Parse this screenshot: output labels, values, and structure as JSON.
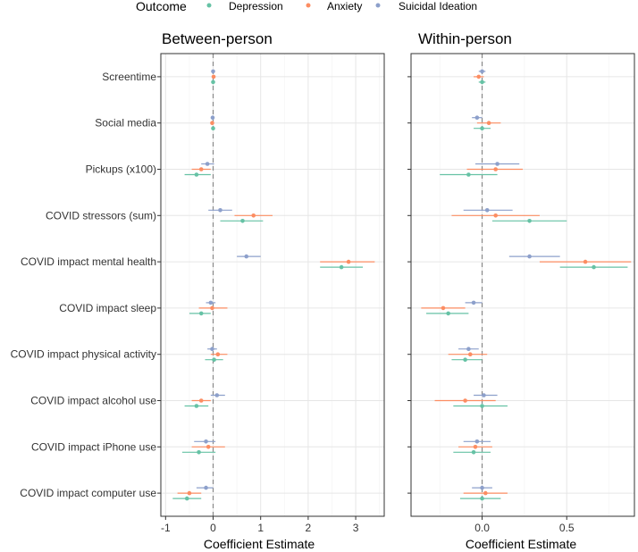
{
  "legend": {
    "title": "Outcome",
    "items": [
      {
        "label": "Depression",
        "color": "#66c2a5"
      },
      {
        "label": "Anxiety",
        "color": "#fc8d62"
      },
      {
        "label": "Suicidal Ideation",
        "color": "#8da0cb"
      }
    ]
  },
  "chart_data": [
    {
      "type": "scatter",
      "subtype": "coefficient-forest-plot",
      "title": "Between-person",
      "xlabel": "Coefficient Estimate",
      "ylabel": "",
      "xlim": [
        -1.1,
        3.6
      ],
      "xticks": [
        -1,
        0,
        1,
        2,
        3
      ],
      "reference_line": 0,
      "grid": true,
      "legend_position": "top",
      "categories": [
        "Screentime",
        "Social media",
        "Pickups (x100)",
        "COVID stressors (sum)",
        "COVID impact mental health",
        "COVID impact sleep",
        "COVID impact physical activity",
        "COVID impact alcohol use",
        "COVID impact iPhone use",
        "COVID impact computer use"
      ],
      "series": [
        {
          "name": "Depression",
          "color": "#66c2a5",
          "estimate": [
            0.0,
            0.0,
            -0.35,
            0.62,
            2.7,
            -0.25,
            0.02,
            -0.35,
            -0.3,
            -0.55
          ],
          "lower": [
            -0.02,
            -0.02,
            -0.6,
            0.15,
            2.25,
            -0.5,
            -0.17,
            -0.6,
            -0.65,
            -0.85
          ],
          "upper": [
            0.02,
            0.02,
            -0.05,
            1.05,
            3.15,
            -0.05,
            0.21,
            -0.1,
            0.05,
            -0.25
          ]
        },
        {
          "name": "Anxiety",
          "color": "#fc8d62",
          "estimate": [
            0.01,
            -0.02,
            -0.25,
            0.85,
            2.85,
            -0.02,
            0.1,
            -0.25,
            -0.1,
            -0.5
          ],
          "lower": [
            -0.01,
            -0.04,
            -0.45,
            0.45,
            2.25,
            -0.3,
            -0.05,
            -0.45,
            -0.45,
            -0.75
          ],
          "upper": [
            0.03,
            0.0,
            -0.05,
            1.25,
            3.4,
            0.3,
            0.3,
            -0.05,
            0.25,
            -0.25
          ]
        },
        {
          "name": "Suicidal Ideation",
          "color": "#8da0cb",
          "estimate": [
            0.0,
            -0.01,
            -0.12,
            0.15,
            0.7,
            -0.05,
            -0.02,
            0.08,
            -0.15,
            -0.15
          ],
          "lower": [
            -0.02,
            -0.03,
            -0.25,
            -0.1,
            0.5,
            -0.15,
            -0.12,
            -0.05,
            -0.4,
            -0.35
          ],
          "upper": [
            0.02,
            0.01,
            0.02,
            0.4,
            1.0,
            0.05,
            0.08,
            0.25,
            0.05,
            0.0
          ]
        }
      ]
    },
    {
      "type": "scatter",
      "subtype": "coefficient-forest-plot",
      "title": "Within-person",
      "xlabel": "Coefficient Estimate",
      "ylabel": "",
      "xlim": [
        -0.42,
        0.9
      ],
      "xticks": [
        0.0,
        0.5
      ],
      "reference_line": 0,
      "grid": true,
      "legend_position": "top",
      "categories": [
        "Screentime",
        "Social media",
        "Pickups (x100)",
        "COVID stressors (sum)",
        "COVID impact mental health",
        "COVID impact sleep",
        "COVID impact physical activity",
        "COVID impact alcohol use",
        "COVID impact iPhone use",
        "COVID impact computer use"
      ],
      "series": [
        {
          "name": "Depression",
          "color": "#66c2a5",
          "estimate": [
            0.0,
            0.0,
            -0.08,
            0.28,
            0.66,
            -0.2,
            -0.1,
            0.0,
            -0.05,
            0.0
          ],
          "lower": [
            -0.02,
            -0.05,
            -0.25,
            0.06,
            0.46,
            -0.33,
            -0.18,
            -0.17,
            -0.17,
            -0.13
          ],
          "upper": [
            0.02,
            0.05,
            0.09,
            0.5,
            0.86,
            -0.08,
            0.0,
            0.15,
            0.05,
            0.11
          ]
        },
        {
          "name": "Anxiety",
          "color": "#fc8d62",
          "estimate": [
            -0.02,
            0.04,
            0.08,
            0.08,
            0.61,
            -0.23,
            -0.07,
            -0.1,
            -0.04,
            0.02
          ],
          "lower": [
            -0.05,
            -0.03,
            -0.09,
            -0.18,
            0.34,
            -0.36,
            -0.2,
            -0.28,
            -0.14,
            -0.11
          ],
          "upper": [
            0.01,
            0.11,
            0.24,
            0.34,
            0.88,
            -0.1,
            0.03,
            0.08,
            0.06,
            0.15
          ]
        },
        {
          "name": "Suicidal Ideation",
          "color": "#8da0cb",
          "estimate": [
            0.0,
            -0.03,
            0.09,
            0.03,
            0.28,
            -0.05,
            -0.08,
            0.01,
            -0.03,
            0.0
          ],
          "lower": [
            -0.02,
            -0.06,
            -0.04,
            -0.11,
            0.16,
            -0.1,
            -0.14,
            -0.05,
            -0.11,
            -0.06
          ],
          "upper": [
            0.02,
            0.0,
            0.22,
            0.18,
            0.46,
            0.0,
            -0.02,
            0.09,
            0.05,
            0.06
          ]
        }
      ]
    }
  ]
}
